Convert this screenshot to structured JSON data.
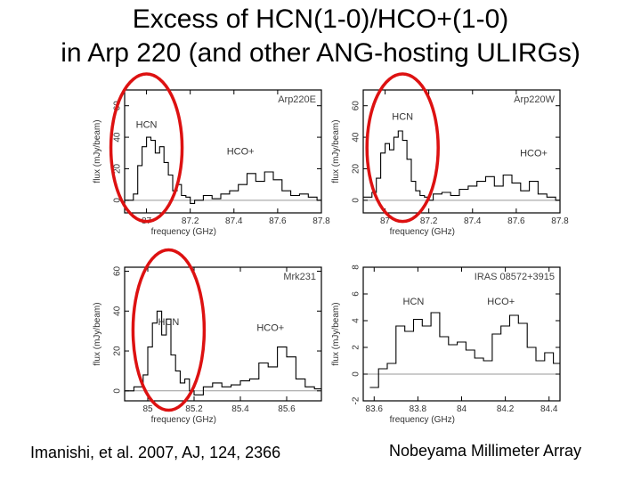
{
  "title_line1": "Excess of HCN(1-0)/HCO+(1-0)",
  "title_line2": "in Arp 220 (and other ANG-hosting ULIRGs)",
  "caption_left": "Imanishi, et al. 2007, AJ, 124, 2366",
  "caption_right": "Nobeyama Millimeter Array",
  "colors": {
    "spectrum": "#000000",
    "highlight": "#dd1111",
    "zero_line": "#999999"
  },
  "chart_data": [
    {
      "type": "line",
      "name": "Arp220E",
      "xlabel": "frequency (GHz)",
      "ylabel": "flux (mJy/beam)",
      "xlim": [
        86.9,
        87.8
      ],
      "ylim": [
        -8,
        70
      ],
      "xticks": [
        87,
        87.2,
        87.4,
        87.6,
        87.8
      ],
      "xtick_labels": [
        "87",
        "87.2",
        "87.4",
        "87.6",
        "87.8"
      ],
      "yticks": [
        0,
        20,
        40,
        60
      ],
      "line_labels": [
        "HCN",
        "HCO+"
      ],
      "annotations": [
        {
          "text": "HCN",
          "x": 87.0,
          "y": 46
        },
        {
          "text": "HCO+",
          "x": 87.43,
          "y": 29
        }
      ],
      "x": [
        86.9,
        86.94,
        86.96,
        86.98,
        87.0,
        87.02,
        87.04,
        87.06,
        87.08,
        87.1,
        87.12,
        87.14,
        87.16,
        87.18,
        87.2,
        87.22,
        87.26,
        87.3,
        87.34,
        87.38,
        87.42,
        87.46,
        87.5,
        87.54,
        87.58,
        87.62,
        87.66,
        87.7,
        87.74,
        87.78
      ],
      "y": [
        0,
        4,
        22,
        34,
        40,
        38,
        30,
        34,
        24,
        16,
        6,
        10,
        3,
        2,
        -2,
        0,
        3,
        1,
        4,
        6,
        10,
        17,
        12,
        18,
        13,
        6,
        3,
        4,
        2,
        0
      ],
      "highlight": {
        "shape": "ellipse",
        "target": "HCN"
      }
    },
    {
      "type": "line",
      "name": "Arp220W",
      "xlabel": "frequency (GHz)",
      "ylabel": "flux (mJy/beam)",
      "xlim": [
        86.9,
        87.8
      ],
      "ylim": [
        -8,
        70
      ],
      "xticks": [
        87,
        87.2,
        87.4,
        87.6,
        87.8
      ],
      "xtick_labels": [
        "87",
        "87.2",
        "87.4",
        "87.6",
        "87.8"
      ],
      "yticks": [
        0,
        20,
        40,
        60
      ],
      "line_labels": [
        "HCN",
        "HCO+"
      ],
      "annotations": [
        {
          "text": "HCN",
          "x": 87.08,
          "y": 51
        },
        {
          "text": "HCO+",
          "x": 87.68,
          "y": 28
        }
      ],
      "x": [
        86.9,
        86.94,
        86.96,
        86.98,
        87.0,
        87.02,
        87.04,
        87.06,
        87.08,
        87.1,
        87.12,
        87.14,
        87.16,
        87.18,
        87.2,
        87.22,
        87.26,
        87.3,
        87.34,
        87.38,
        87.42,
        87.46,
        87.5,
        87.54,
        87.58,
        87.62,
        87.66,
        87.7,
        87.74,
        87.78
      ],
      "y": [
        2,
        5,
        14,
        30,
        36,
        32,
        40,
        44,
        38,
        26,
        12,
        6,
        3,
        2,
        0,
        4,
        5,
        3,
        7,
        9,
        12,
        15,
        9,
        16,
        11,
        6,
        12,
        4,
        2,
        0
      ],
      "highlight": {
        "shape": "ellipse",
        "target": "HCN"
      }
    },
    {
      "type": "line",
      "name": "Mrk231",
      "xlabel": "frequency (GHz)",
      "ylabel": "flux (mJy/beam)",
      "xlim": [
        84.9,
        85.75
      ],
      "ylim": [
        -5,
        62
      ],
      "xticks": [
        85,
        85.2,
        85.4,
        85.6
      ],
      "xtick_labels": [
        "85",
        "85.2",
        "85.4",
        "85.6"
      ],
      "yticks": [
        0,
        20,
        40,
        60
      ],
      "line_labels": [
        "HCN",
        "HCO+"
      ],
      "annotations": [
        {
          "text": "HCN",
          "x": 85.09,
          "y": 33
        },
        {
          "text": "HCO+",
          "x": 85.53,
          "y": 30
        }
      ],
      "x": [
        84.9,
        84.94,
        84.98,
        85.0,
        85.02,
        85.04,
        85.06,
        85.08,
        85.1,
        85.12,
        85.14,
        85.16,
        85.18,
        85.2,
        85.24,
        85.28,
        85.32,
        85.36,
        85.4,
        85.44,
        85.48,
        85.52,
        85.56,
        85.6,
        85.64,
        85.68,
        85.72
      ],
      "y": [
        0,
        2,
        8,
        22,
        34,
        40,
        28,
        36,
        18,
        10,
        4,
        6,
        0,
        -2,
        2,
        4,
        2,
        3,
        5,
        6,
        14,
        12,
        22,
        17,
        6,
        2,
        1
      ],
      "highlight": {
        "shape": "ellipse",
        "target": "HCN"
      }
    },
    {
      "type": "line",
      "name": "IRAS 08572+3915",
      "xlabel": "frequency (GHz)",
      "ylabel": "flux (mJy/beam)",
      "xlim": [
        83.55,
        84.45
      ],
      "ylim": [
        -2,
        8
      ],
      "xticks": [
        83.6,
        83.8,
        84,
        84.2,
        84.4
      ],
      "xtick_labels": [
        "83.6",
        "83.8",
        "84",
        "84.2",
        "84.4"
      ],
      "yticks": [
        -2,
        0,
        2,
        4,
        6,
        8
      ],
      "line_labels": [
        "HCN",
        "HCO+"
      ],
      "annotations": [
        {
          "text": "HCN",
          "x": 83.78,
          "y": 5.2
        },
        {
          "text": "HCO+",
          "x": 84.18,
          "y": 5.2
        }
      ],
      "x": [
        83.58,
        83.62,
        83.66,
        83.7,
        83.74,
        83.78,
        83.82,
        83.86,
        83.9,
        83.94,
        83.98,
        84.02,
        84.06,
        84.1,
        84.14,
        84.18,
        84.22,
        84.26,
        84.3,
        84.34,
        84.38,
        84.42
      ],
      "y": [
        -1,
        0.4,
        0.8,
        3.6,
        3.2,
        4.1,
        3.6,
        4.6,
        2.8,
        2.2,
        2.4,
        1.8,
        1.2,
        1.0,
        3.0,
        3.6,
        4.4,
        3.8,
        2.0,
        1.0,
        1.6,
        0.8
      ]
    }
  ]
}
